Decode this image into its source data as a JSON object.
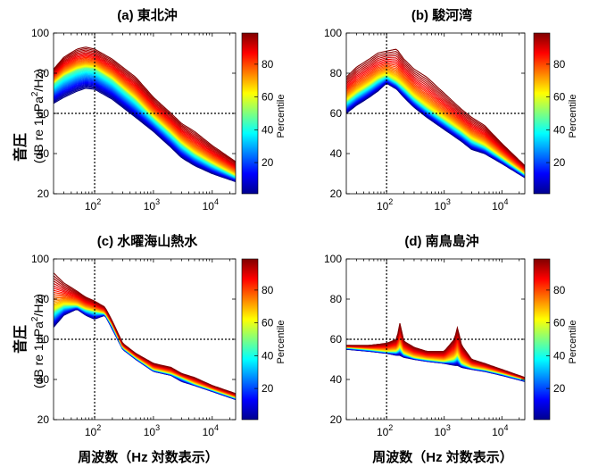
{
  "chart_data": [
    {
      "type": "line",
      "panel": "(a)",
      "title": "東北沖",
      "x_scale": "log",
      "xlim": [
        20,
        25000
      ],
      "ylim": [
        20,
        100
      ],
      "yticks": [
        20,
        40,
        60,
        80,
        100
      ],
      "xtick_labels": [
        {
          "base": "10",
          "exp": "2"
        },
        {
          "base": "10",
          "exp": "3"
        },
        {
          "base": "10",
          "exp": "4"
        }
      ],
      "ylabel_main": "音圧",
      "ylabel_sub": [
        "(dB re 1μPa",
        "2",
        "/Hz)"
      ],
      "reference_lines": {
        "x": 100,
        "y": 60
      },
      "colorbar": {
        "label": "Percentile",
        "ticks": [
          20,
          40,
          60,
          80
        ],
        "range": [
          1,
          99
        ]
      },
      "series": [
        {
          "percentile": 1,
          "x": [
            20,
            30,
            50,
            70,
            100,
            200,
            300,
            500,
            1000,
            2000,
            3000,
            5000,
            10000,
            25000
          ],
          "y": [
            65,
            68,
            71,
            72.5,
            72,
            67,
            63,
            58,
            51,
            43,
            38,
            34,
            30,
            26
          ]
        },
        {
          "percentile": 50,
          "x": [
            20,
            30,
            50,
            70,
            100,
            200,
            300,
            500,
            1000,
            2000,
            3000,
            5000,
            10000,
            25000
          ],
          "y": [
            75,
            79,
            82,
            83,
            82.5,
            77,
            72.5,
            67,
            58,
            50,
            45,
            40,
            35,
            29
          ]
        },
        {
          "percentile": 99,
          "x": [
            20,
            30,
            50,
            70,
            100,
            200,
            300,
            500,
            1000,
            2000,
            3000,
            5000,
            10000,
            25000
          ],
          "y": [
            82,
            88,
            92,
            93,
            92,
            87,
            83,
            78,
            68,
            60,
            55,
            51,
            44,
            36
          ]
        }
      ]
    },
    {
      "type": "line",
      "panel": "(b)",
      "title": "駿河湾",
      "x_scale": "log",
      "xlim": [
        20,
        25000
      ],
      "ylim": [
        20,
        100
      ],
      "yticks": [
        20,
        40,
        60,
        80,
        100
      ],
      "xtick_labels": [
        {
          "base": "10",
          "exp": "2"
        },
        {
          "base": "10",
          "exp": "3"
        },
        {
          "base": "10",
          "exp": "4"
        }
      ],
      "reference_lines": {
        "x": 100,
        "y": 60
      },
      "colorbar": {
        "label": "Percentile",
        "ticks": [
          20,
          40,
          60,
          80
        ],
        "range": [
          1,
          99
        ]
      },
      "series": [
        {
          "percentile": 1,
          "x": [
            20,
            30,
            50,
            70,
            100,
            150,
            200,
            300,
            500,
            1000,
            2000,
            3000,
            5000,
            10000,
            25000
          ],
          "y": [
            60,
            64,
            68,
            71,
            75,
            72,
            68,
            63,
            58,
            52,
            46,
            42,
            40,
            35,
            28
          ]
        },
        {
          "percentile": 50,
          "x": [
            20,
            30,
            50,
            70,
            100,
            150,
            200,
            300,
            500,
            1000,
            2000,
            3000,
            5000,
            10000,
            25000
          ],
          "y": [
            66,
            70,
            74,
            77,
            79,
            76,
            73,
            68,
            63,
            57,
            51,
            47,
            44,
            38,
            30
          ]
        },
        {
          "percentile": 99,
          "x": [
            20,
            30,
            50,
            70,
            100,
            150,
            200,
            300,
            500,
            1000,
            2000,
            3000,
            5000,
            10000,
            25000
          ],
          "y": [
            78,
            83,
            87,
            90,
            91,
            92,
            87,
            82,
            78,
            70,
            62,
            58,
            54,
            45,
            34
          ]
        }
      ]
    },
    {
      "type": "line",
      "panel": "(c)",
      "title": "水曜海山熱水",
      "x_scale": "log",
      "xlim": [
        20,
        25000
      ],
      "ylim": [
        20,
        100
      ],
      "yticks": [
        20,
        40,
        60,
        80,
        100
      ],
      "xtick_labels": [
        {
          "base": "10",
          "exp": "2"
        },
        {
          "base": "10",
          "exp": "3"
        },
        {
          "base": "10",
          "exp": "4"
        }
      ],
      "ylabel_main": "音圧",
      "ylabel_sub": [
        "(dB re 1μPa",
        "2",
        "/Hz)"
      ],
      "xlabel": "周波数（Hz 対数表示）",
      "reference_lines": {
        "x": 100,
        "y": 60
      },
      "colorbar": {
        "label": "Percentile",
        "ticks": [
          20,
          40,
          60,
          80
        ],
        "range": [
          1,
          99
        ]
      },
      "series": [
        {
          "percentile": 1,
          "x": [
            20,
            30,
            50,
            70,
            100,
            150,
            200,
            300,
            500,
            1000,
            2000,
            3000,
            5000,
            10000,
            25000
          ],
          "y": [
            66,
            72,
            75,
            72,
            70,
            72,
            65,
            55,
            50,
            44,
            42,
            39,
            37,
            34,
            30
          ]
        },
        {
          "percentile": 50,
          "x": [
            20,
            30,
            50,
            70,
            100,
            150,
            200,
            300,
            500,
            1000,
            2000,
            3000,
            5000,
            10000,
            25000
          ],
          "y": [
            74,
            77,
            77,
            75,
            74,
            73,
            67,
            56,
            51,
            45,
            43,
            41,
            38,
            35,
            31
          ]
        },
        {
          "percentile": 99,
          "x": [
            20,
            30,
            50,
            70,
            100,
            150,
            200,
            300,
            500,
            1000,
            2000,
            3000,
            5000,
            10000,
            25000
          ],
          "y": [
            93,
            88,
            84,
            81,
            79,
            76,
            69,
            58,
            53,
            48,
            46,
            43,
            41,
            37,
            33
          ]
        }
      ]
    },
    {
      "type": "line",
      "panel": "(d)",
      "title": "南鳥島沖",
      "x_scale": "log",
      "xlim": [
        20,
        25000
      ],
      "ylim": [
        20,
        100
      ],
      "yticks": [
        20,
        40,
        60,
        80,
        100
      ],
      "xtick_labels": [
        {
          "base": "10",
          "exp": "2"
        },
        {
          "base": "10",
          "exp": "3"
        },
        {
          "base": "10",
          "exp": "4"
        }
      ],
      "xlabel": "周波数（Hz 対数表示）",
      "reference_lines": {
        "x": 100,
        "y": 60
      },
      "colorbar": {
        "label": "Percentile",
        "ticks": [
          20,
          40,
          60,
          80
        ],
        "range": [
          1,
          99
        ]
      },
      "series": [
        {
          "percentile": 1,
          "x": [
            20,
            50,
            100,
            150,
            170,
            200,
            300,
            500,
            1000,
            1500,
            1700,
            2000,
            3000,
            5000,
            10000,
            25000
          ],
          "y": [
            55,
            54,
            53,
            52,
            52,
            51,
            50,
            49,
            48,
            47,
            47,
            46,
            45,
            44,
            42,
            39
          ]
        },
        {
          "percentile": 50,
          "x": [
            20,
            50,
            100,
            150,
            170,
            200,
            300,
            500,
            1000,
            1500,
            1700,
            2000,
            3000,
            5000,
            10000,
            25000
          ],
          "y": [
            56,
            55,
            54,
            54,
            56,
            53,
            51,
            50,
            49,
            50,
            52,
            48,
            46,
            45,
            43,
            40
          ]
        },
        {
          "percentile": 99,
          "x": [
            20,
            50,
            100,
            150,
            170,
            200,
            300,
            500,
            1000,
            1500,
            1700,
            2000,
            3000,
            5000,
            10000,
            25000
          ],
          "y": [
            57,
            57,
            58,
            60,
            68,
            59,
            56,
            54,
            54,
            60,
            66,
            57,
            50,
            48,
            45,
            41
          ]
        }
      ]
    }
  ]
}
